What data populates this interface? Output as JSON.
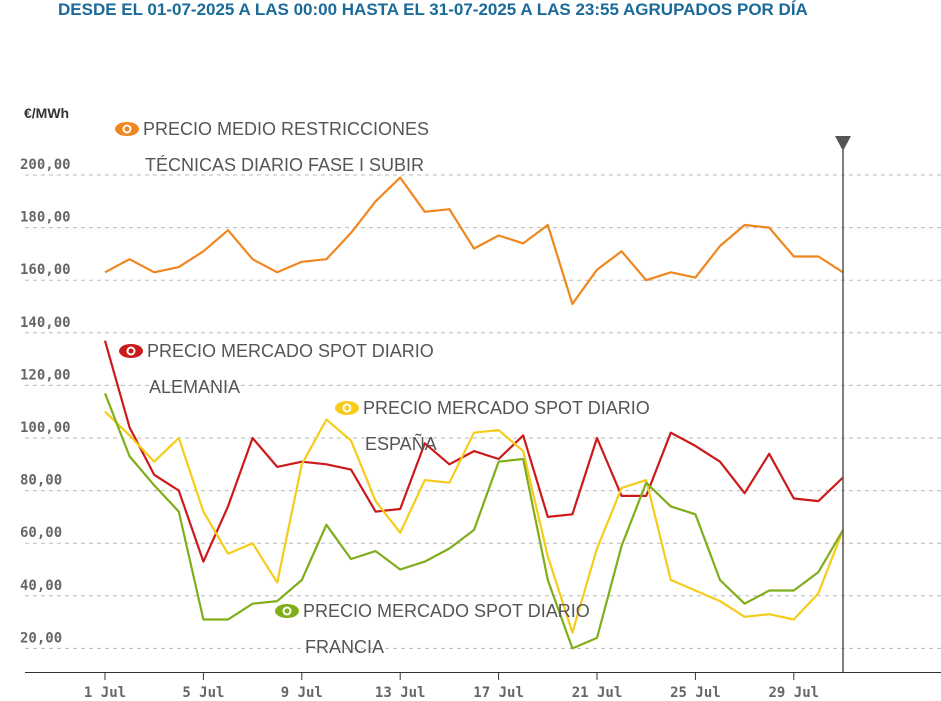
{
  "title": "DESDE EL 01-07-2025 A LAS 00:00 HASTA EL 31-07-2025 A LAS 23:55 AGRUPADOS POR DÍA",
  "chart_data": {
    "type": "line",
    "title": "DESDE EL 01-07-2025 A LAS 00:00 HASTA EL 31-07-2025 A LAS 23:55 AGRUPADOS POR DÍA",
    "ylabel": "€/MWh",
    "ylim": [
      0,
      210
    ],
    "y_ticks": [
      "20,00",
      "40,00",
      "60,00",
      "80,00",
      "100,00",
      "120,00",
      "140,00",
      "160,00",
      "180,00",
      "200,00"
    ],
    "x_ticks": [
      "1 Jul",
      "5 Jul",
      "9 Jul",
      "13 Jul",
      "17 Jul",
      "21 Jul",
      "25 Jul",
      "29 Jul"
    ],
    "x_tick_days": [
      1,
      5,
      9,
      13,
      17,
      21,
      25,
      29
    ],
    "days": [
      1,
      2,
      3,
      4,
      5,
      6,
      7,
      8,
      9,
      10,
      11,
      12,
      13,
      14,
      15,
      16,
      17,
      18,
      19,
      20,
      21,
      22,
      23,
      24,
      25,
      26,
      27,
      28,
      29,
      30,
      31
    ],
    "grid": true,
    "cursor_day": 31,
    "series": [
      {
        "name": "PRECIO MEDIO RESTRICCIONES TÉCNICAS DIARIO FASE I SUBIR",
        "legend_line1": "PRECIO MEDIO RESTRICCIONES",
        "legend_line2": "TÉCNICAS DIARIO FASE I SUBIR",
        "color": "#f0861e",
        "values": [
          163,
          168,
          163,
          165,
          171,
          179,
          168,
          163,
          167,
          168,
          178,
          190,
          199,
          186,
          187,
          172,
          177,
          174,
          181,
          151,
          164,
          171,
          160,
          163,
          161,
          173,
          181,
          180,
          169,
          169,
          163
        ]
      },
      {
        "name": "PRECIO MERCADO SPOT DIARIO ALEMANIA",
        "legend_line1": "PRECIO MERCADO SPOT DIARIO",
        "legend_line2": "ALEMANIA",
        "color": "#cc1a1a",
        "values": [
          137,
          104,
          86,
          80,
          53,
          74,
          100,
          89,
          91,
          90,
          88,
          72,
          73,
          98,
          90,
          95,
          92,
          101,
          70,
          71,
          100,
          78,
          78,
          102,
          97,
          91,
          79,
          94,
          77,
          76,
          85
        ]
      },
      {
        "name": "PRECIO MERCADO SPOT DIARIO ESPAÑA",
        "legend_line1": "PRECIO MERCADO SPOT DIARIO",
        "legend_line2": "ESPAÑA",
        "color": "#f5cc1a",
        "values": [
          110,
          101,
          91,
          100,
          72,
          56,
          60,
          45,
          90,
          107,
          99,
          76,
          64,
          84,
          83,
          102,
          103,
          95,
          55,
          26,
          58,
          81,
          84,
          46,
          42,
          38,
          32,
          33,
          31,
          41,
          65
        ]
      },
      {
        "name": "PRECIO MERCADO SPOT DIARIO FRANCIA",
        "legend_line1": "PRECIO MERCADO SPOT DIARIO",
        "legend_line2": "FRANCIA",
        "color": "#80ad1a",
        "values": [
          117,
          93,
          82,
          72,
          31,
          31,
          37,
          38,
          46,
          67,
          54,
          57,
          50,
          53,
          58,
          65,
          91,
          92,
          46,
          20,
          24,
          59,
          83,
          74,
          71,
          46,
          37,
          42,
          42,
          49,
          65
        ]
      }
    ]
  }
}
